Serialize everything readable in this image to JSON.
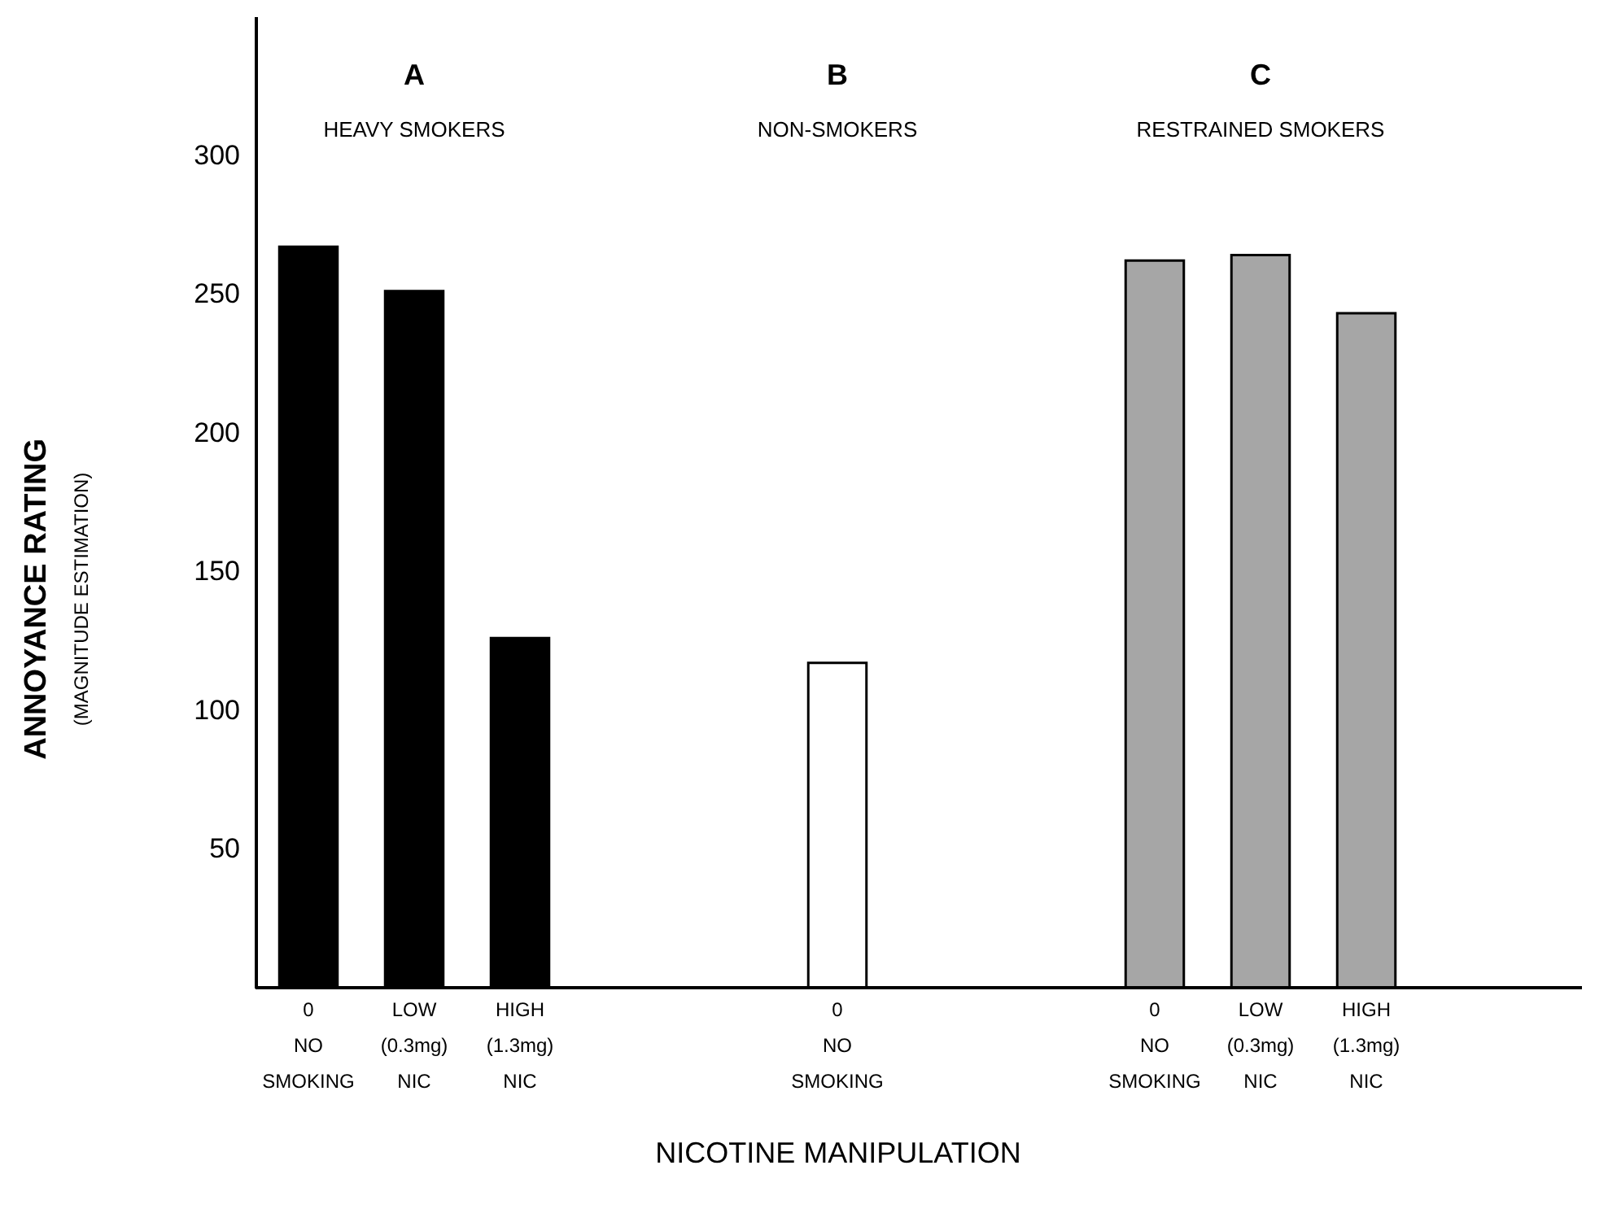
{
  "chart_data": {
    "type": "bar",
    "xlabel": "NICOTINE MANIPULATION",
    "ylabel": "ANNOYANCE RATING\n(MAGNITUDE ESTIMATION)",
    "categories": [
      "0\nNO\nSMOKING",
      "LOW\n(0.3mg)\nNIC",
      "HIGH\n(1.3mg)\nNIC",
      null,
      null,
      "0\nNO\nSMOKING",
      null,
      null,
      "0\nNO\nSMOKING",
      "LOW\n(0.3mg)\nNIC",
      "HIGH\n(1.3mg)\nNIC"
    ],
    "values": [
      267,
      251,
      126,
      null,
      null,
      117,
      null,
      null,
      262,
      264,
      243
    ],
    "colors": [
      "#000000",
      "#000000",
      "#000000",
      null,
      null,
      "#ffffff",
      null,
      null,
      "#a6a6a6",
      "#a6a6a6",
      "#a6a6a6"
    ],
    "annotations": [
      "A",
      "HEAVY SMOKERS",
      "B",
      "NON-SMOKERS",
      "C",
      "RESTRAINED SMOKERS"
    ],
    "ylim": [
      0,
      350
    ],
    "yticks": [
      50,
      100,
      150,
      200,
      250,
      300
    ],
    "grid": false
  }
}
